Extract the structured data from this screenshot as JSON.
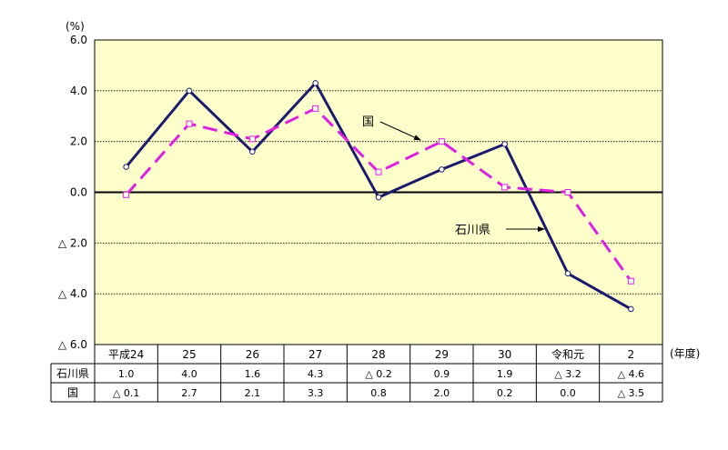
{
  "chart_data": {
    "type": "line",
    "title": "",
    "y_unit": "(%)",
    "x_unit": "(年度)",
    "ylim": [
      -6.0,
      6.0
    ],
    "yticks": [
      6.0,
      4.0,
      2.0,
      0.0,
      -2.0,
      -4.0,
      -6.0
    ],
    "ytick_labels": [
      "6.0",
      "4.0",
      "2.0",
      "0.0",
      "△ 2.0",
      "△ 4.0",
      "△ 6.0"
    ],
    "categories": [
      "平成24",
      "25",
      "26",
      "27",
      "28",
      "29",
      "30",
      "令和元",
      "2"
    ],
    "grid": true,
    "series": [
      {
        "name": "石川県",
        "values": [
          1.0,
          4.0,
          1.6,
          4.3,
          -0.2,
          0.9,
          1.9,
          -3.2,
          -4.6
        ],
        "labels": [
          "1.0",
          "4.0",
          "1.6",
          "4.3",
          "△ 0.2",
          "0.9",
          "1.9",
          "△ 3.2",
          "△ 4.6"
        ],
        "color": "#1a1a6e",
        "style": "solid",
        "marker": "circle"
      },
      {
        "name": "国",
        "values": [
          -0.1,
          2.7,
          2.1,
          3.3,
          0.8,
          2.0,
          0.2,
          0.0,
          -3.5
        ],
        "labels": [
          "△ 0.1",
          "2.7",
          "2.1",
          "3.3",
          "0.8",
          "2.0",
          "0.2",
          "0.0",
          "△ 3.5"
        ],
        "color": "#e020e0",
        "style": "dashed",
        "marker": "square"
      }
    ],
    "annotations": [
      {
        "text": "国",
        "series": "国",
        "point_index": 4
      },
      {
        "text": "石川県",
        "series": "石川県",
        "point_index": 6
      }
    ],
    "colors": {
      "plot_bg": "#ffffcc",
      "grid": "#000000",
      "axis": "#000000"
    }
  }
}
